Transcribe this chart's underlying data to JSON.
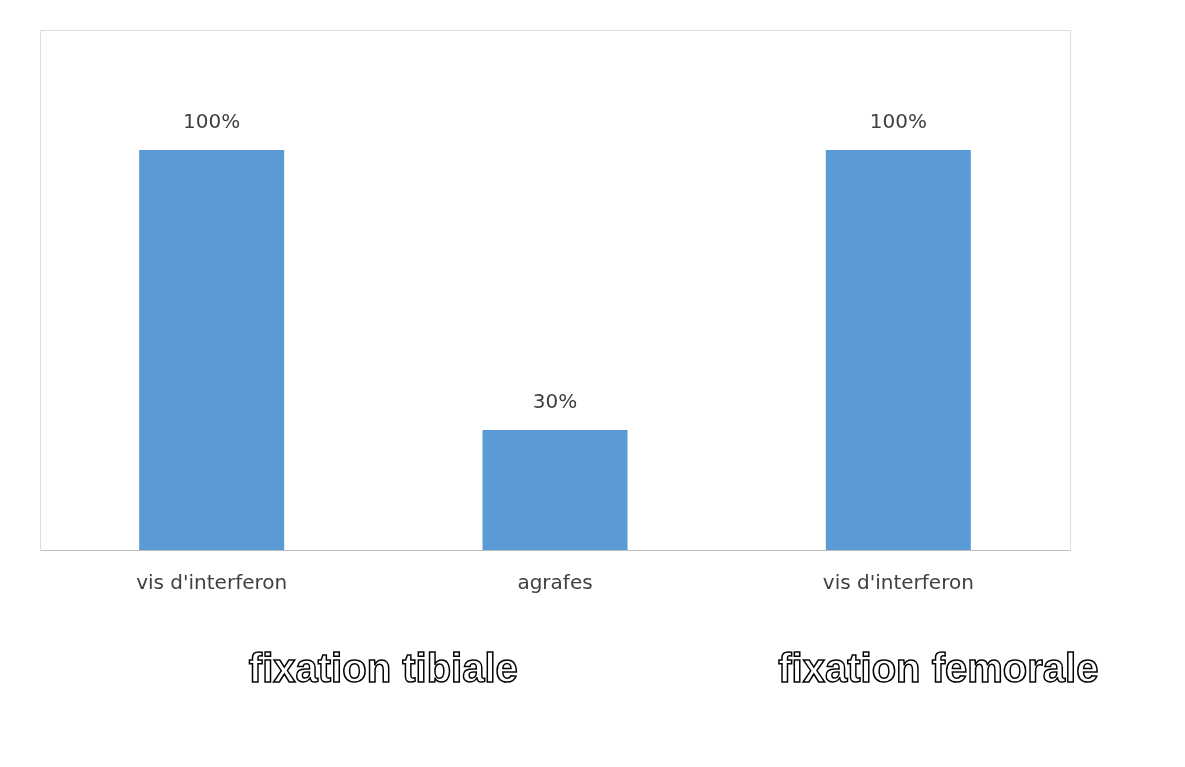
{
  "chart_data": {
    "type": "bar",
    "categories": [
      "vis d'interferon",
      "agrafes",
      "vis d'interferon"
    ],
    "values": [
      100,
      30,
      100
    ],
    "value_labels": [
      "100%",
      "30%",
      "100%"
    ],
    "color": "#5b9bd5",
    "grid": false,
    "annotations": [
      "fixation tibiale",
      "fixation femorale"
    ]
  }
}
